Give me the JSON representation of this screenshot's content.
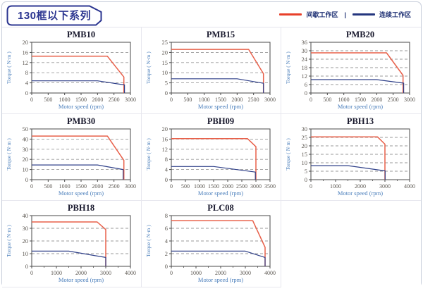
{
  "header": {
    "title": "130框以下系列",
    "legend_separator": "|",
    "legend": [
      {
        "label": "间歇工作区",
        "color": "#e8402a"
      },
      {
        "label": "连续工作区",
        "color": "#24367e"
      }
    ]
  },
  "colors": {
    "intermittent_line": "#e8604a",
    "continuous_line": "#2e3f88",
    "plot_border": "#4a4a4a",
    "gridline": "#9a9a9a",
    "tick_label": "#5d5852",
    "axis_label": "#4a7ebb",
    "chart_title": "#1a1a2e",
    "outer_border": "#c7cdda",
    "title_box_border": "#2b3590"
  },
  "chart_data": [
    {
      "type": "line",
      "title": "PMB10",
      "xlabel": "Motor speed (rpm)",
      "ylabel": "Torque ( N·m )",
      "xlim": [
        0,
        3000
      ],
      "ylim": [
        0,
        20
      ],
      "xticks": [
        0,
        500,
        1000,
        1500,
        2000,
        2500,
        3000
      ],
      "yticks": [
        0,
        4,
        8,
        12,
        16,
        20
      ],
      "xminor": [],
      "grid": "dashed-horizontal",
      "series": [
        {
          "name": "间歇工作区",
          "color": "#e8604a",
          "points": [
            [
              0,
              14.5
            ],
            [
              2300,
              14.5
            ],
            [
              2800,
              6.3
            ],
            [
              2800,
              0
            ]
          ]
        },
        {
          "name": "连续工作区",
          "color": "#2e3f88",
          "points": [
            [
              0,
              4.8
            ],
            [
              2000,
              4.8
            ],
            [
              2820,
              3.2
            ],
            [
              2820,
              0
            ]
          ]
        }
      ]
    },
    {
      "type": "line",
      "title": "PMB15",
      "xlabel": "Motor speed (rpm)",
      "ylabel": "Torque ( N·m )",
      "xlim": [
        0,
        3000
      ],
      "ylim": [
        0,
        25
      ],
      "xticks": [
        0,
        500,
        1000,
        1500,
        2000,
        2500,
        3000
      ],
      "yticks": [
        0,
        5,
        10,
        15,
        20,
        25
      ],
      "xminor": [],
      "grid": "dashed-horizontal",
      "series": [
        {
          "name": "间歇工作区",
          "color": "#e8604a",
          "points": [
            [
              0,
              21.5
            ],
            [
              2350,
              21.5
            ],
            [
              2800,
              9.5
            ],
            [
              2800,
              0
            ]
          ]
        },
        {
          "name": "连续工作区",
          "color": "#2e3f88",
          "points": [
            [
              0,
              7
            ],
            [
              2000,
              7
            ],
            [
              2800,
              4.8
            ],
            [
              2800,
              0
            ]
          ]
        }
      ]
    },
    {
      "type": "line",
      "title": "PMB20",
      "xlabel": "Motor speed (rpm)",
      "ylabel": "Torque ( N·m )",
      "xlim": [
        0,
        3000
      ],
      "ylim": [
        0,
        36
      ],
      "xticks": [
        0,
        500,
        1000,
        1500,
        2000,
        2500,
        3000
      ],
      "yticks": [
        0,
        6,
        12,
        18,
        24,
        30,
        36
      ],
      "xminor": [],
      "grid": "dashed-horizontal",
      "series": [
        {
          "name": "间歇工作区",
          "color": "#e8604a",
          "points": [
            [
              0,
              28.5
            ],
            [
              2300,
              28.5
            ],
            [
              2800,
              12.5
            ],
            [
              2800,
              0
            ]
          ]
        },
        {
          "name": "连续工作区",
          "color": "#2e3f88",
          "points": [
            [
              0,
              9.5
            ],
            [
              2000,
              9.5
            ],
            [
              2820,
              7
            ],
            [
              2820,
              0
            ]
          ]
        }
      ]
    },
    {
      "type": "line",
      "title": "PMB30",
      "xlabel": "Motor speed (rpm)",
      "ylabel": "Torque ( N·m )",
      "xlim": [
        0,
        3000
      ],
      "ylim": [
        0,
        50
      ],
      "xticks": [
        0,
        500,
        1000,
        1500,
        2000,
        2500,
        3000
      ],
      "yticks": [
        0,
        10,
        20,
        30,
        40,
        50
      ],
      "xminor": [],
      "grid": "dashed-horizontal",
      "series": [
        {
          "name": "间歇工作区",
          "color": "#e8604a",
          "points": [
            [
              0,
              43
            ],
            [
              2300,
              43
            ],
            [
              2800,
              19
            ],
            [
              2800,
              0
            ]
          ]
        },
        {
          "name": "连续工作区",
          "color": "#2e3f88",
          "points": [
            [
              0,
              14.5
            ],
            [
              2000,
              14.5
            ],
            [
              2780,
              10
            ],
            [
              2780,
              0
            ]
          ]
        }
      ]
    },
    {
      "type": "line",
      "title": "PBH09",
      "xlabel": "Motor speed (rpm)",
      "ylabel": "Torque ( N·m )",
      "xlim": [
        0,
        3500
      ],
      "ylim": [
        0,
        20
      ],
      "xticks": [
        0,
        500,
        1000,
        1500,
        2000,
        2500,
        3000,
        3500
      ],
      "yticks": [
        0,
        4,
        8,
        12,
        16,
        20
      ],
      "xminor": [],
      "grid": "dashed-horizontal",
      "series": [
        {
          "name": "间歇工作区",
          "color": "#e8604a",
          "points": [
            [
              0,
              16.2
            ],
            [
              2700,
              16.2
            ],
            [
              3000,
              13
            ],
            [
              3000,
              0
            ]
          ]
        },
        {
          "name": "连续工作区",
          "color": "#2e3f88",
          "points": [
            [
              0,
              5.2
            ],
            [
              1500,
              5.2
            ],
            [
              2980,
              3
            ],
            [
              2980,
              0
            ]
          ]
        }
      ]
    },
    {
      "type": "line",
      "title": "PBH13",
      "xlabel": "Motor speed (rpm)",
      "ylabel": "Torque ( N·m )",
      "xlim": [
        0,
        4000
      ],
      "ylim": [
        0,
        30
      ],
      "xticks": [
        0,
        1000,
        2000,
        3000,
        4000
      ],
      "yticks": [
        0,
        5,
        10,
        15,
        20,
        25,
        30
      ],
      "xminor": [
        500,
        1500,
        2500,
        3500
      ],
      "grid": "dashed-horizontal",
      "series": [
        {
          "name": "间歇工作区",
          "color": "#e8604a",
          "points": [
            [
              0,
              25.3
            ],
            [
              2700,
              25.3
            ],
            [
              3000,
              21
            ],
            [
              3000,
              0
            ]
          ]
        },
        {
          "name": "连续工作区",
          "color": "#2e3f88",
          "points": [
            [
              0,
              8.3
            ],
            [
              1500,
              8.3
            ],
            [
              3010,
              5.2
            ],
            [
              3010,
              0
            ]
          ]
        }
      ]
    },
    {
      "type": "line",
      "title": "PBH18",
      "xlabel": "Motor speed (rpm)",
      "ylabel": "Torque ( N·m )",
      "xlim": [
        0,
        4000
      ],
      "ylim": [
        0,
        40
      ],
      "xticks": [
        0,
        1000,
        2000,
        3000,
        4000
      ],
      "yticks": [
        0,
        10,
        20,
        30,
        40
      ],
      "xminor": [
        500,
        1500,
        2500,
        3500
      ],
      "grid": "dashed-horizontal",
      "series": [
        {
          "name": "间歇工作区",
          "color": "#e8604a",
          "points": [
            [
              0,
              35
            ],
            [
              2650,
              35
            ],
            [
              3000,
              29
            ],
            [
              3000,
              0
            ]
          ]
        },
        {
          "name": "连续工作区",
          "color": "#2e3f88",
          "points": [
            [
              0,
              12
            ],
            [
              1500,
              12
            ],
            [
              3000,
              7
            ],
            [
              3000,
              0
            ]
          ]
        }
      ]
    },
    {
      "type": "line",
      "title": "PLC08",
      "xlabel": "Motor speed (rpm)",
      "ylabel": "Torque ( N·m )",
      "xlim": [
        0,
        4000
      ],
      "ylim": [
        0,
        8
      ],
      "xticks": [
        0,
        1000,
        2000,
        3000,
        4000
      ],
      "yticks": [
        0,
        2,
        4,
        6,
        8
      ],
      "xminor": [
        500,
        1500,
        2500,
        3500
      ],
      "grid": "dashed-horizontal",
      "series": [
        {
          "name": "间歇工作区",
          "color": "#e8604a",
          "points": [
            [
              0,
              7.2
            ],
            [
              3300,
              7.2
            ],
            [
              3800,
              3
            ],
            [
              3800,
              0
            ]
          ]
        },
        {
          "name": "连续工作区",
          "color": "#2e3f88",
          "points": [
            [
              0,
              2.4
            ],
            [
              3000,
              2.4
            ],
            [
              3800,
              1.4
            ],
            [
              3800,
              0
            ]
          ]
        }
      ]
    }
  ]
}
